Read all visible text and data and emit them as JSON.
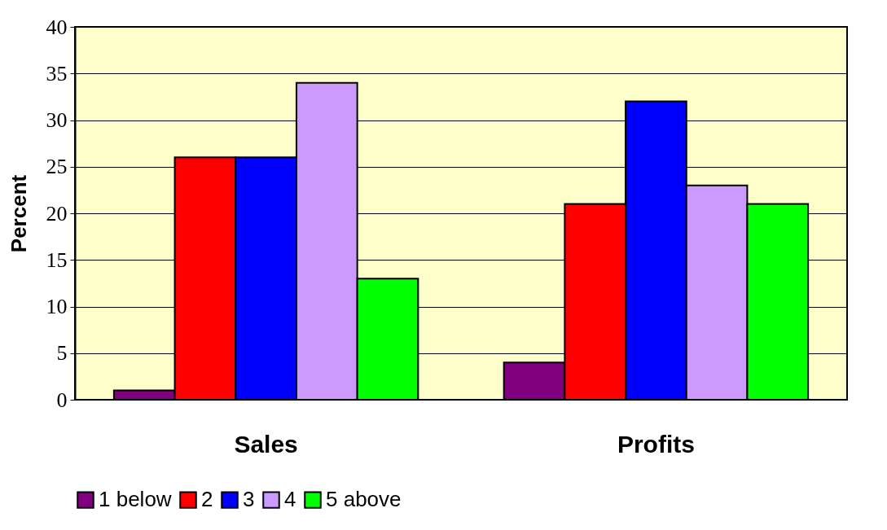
{
  "chart_data": {
    "type": "bar",
    "ylabel": "Percent",
    "categories": [
      "Sales",
      "Profits"
    ],
    "series": [
      {
        "name": "1 below",
        "color": "#800080",
        "values": [
          1,
          4
        ]
      },
      {
        "name": "2",
        "color": "#ff0000",
        "values": [
          26,
          21
        ]
      },
      {
        "name": "3",
        "color": "#0000ff",
        "values": [
          26,
          32
        ]
      },
      {
        "name": "4",
        "color": "#cc99ff",
        "values": [
          34,
          23
        ]
      },
      {
        "name": "5 above",
        "color": "#00ff00",
        "values": [
          13,
          21
        ]
      }
    ],
    "ylim": [
      0,
      40
    ],
    "yticks": [
      0,
      5,
      10,
      15,
      20,
      25,
      30,
      35,
      40
    ],
    "grid": "y",
    "legend": "bottom"
  }
}
